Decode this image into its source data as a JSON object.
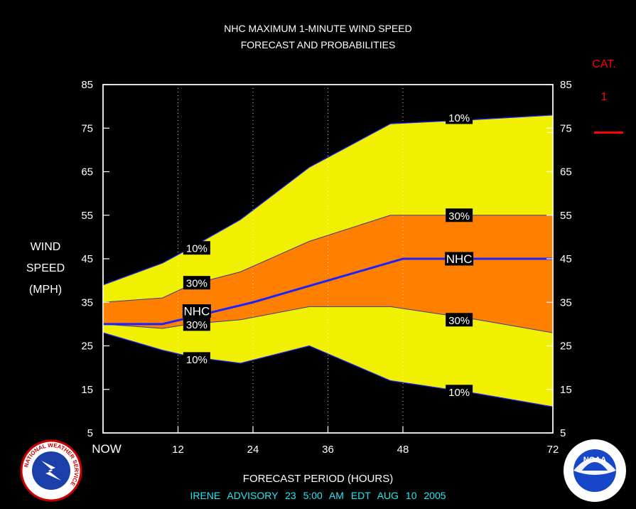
{
  "header": {
    "title_line1": "NHC MAXIMUM 1-MINUTE WIND SPEED",
    "title_line2": "FORECAST AND PROBABILITIES"
  },
  "y_axis_label": [
    "WIND",
    "SPEED",
    "(MPH)"
  ],
  "x_axis_label": "FORECAST PERIOD (HOURS)",
  "advisory_line": "IRENE ADVISORY 23 5:00 AM EDT AUG 10 2005",
  "category": {
    "label": "CAT.",
    "value": "1",
    "color": "#ff0000",
    "threshold_mph": 74
  },
  "colors": {
    "outer_band": "#f0f000",
    "inner_band": "#ff7f00",
    "nhc_line": "#1a22ff",
    "advisory_text": "#23e7f2",
    "background": "#000000"
  },
  "logos": [
    {
      "name": "national-weather-service-logo",
      "text": "NATIONAL WEATHER SERVICE"
    },
    {
      "name": "noaa-logo",
      "text": "NOAA"
    }
  ],
  "chart_data": {
    "type": "area",
    "xlim": [
      0,
      72
    ],
    "ylim": [
      5,
      85
    ],
    "x_ticks": [
      {
        "x": 0,
        "label": "NOW"
      },
      {
        "x": 12,
        "label": "12"
      },
      {
        "x": 24,
        "label": "24"
      },
      {
        "x": 36,
        "label": "36"
      },
      {
        "x": 48,
        "label": "48"
      },
      {
        "x": 72,
        "label": "72"
      }
    ],
    "y_ticks": [
      5,
      15,
      25,
      35,
      45,
      55,
      65,
      75,
      85
    ],
    "series": [
      {
        "name": "10%",
        "band": "upper",
        "x": [
          0,
          9.5,
          14,
          22,
          33,
          46,
          60,
          72
        ],
        "values": [
          39,
          44,
          47.5,
          54,
          66,
          76,
          77,
          78
        ]
      },
      {
        "name": "30%",
        "band": "upper",
        "x": [
          0,
          9.5,
          14,
          22,
          33,
          46,
          60,
          72
        ],
        "values": [
          35,
          36,
          39,
          42,
          49,
          55,
          55,
          55
        ]
      },
      {
        "name": "NHC",
        "x": [
          0,
          9.5,
          24,
          48,
          72
        ],
        "values": [
          30,
          30,
          35,
          45,
          45
        ]
      },
      {
        "name": "30%",
        "band": "lower",
        "x": [
          0,
          9.5,
          14,
          22,
          33,
          46,
          60,
          72
        ],
        "values": [
          30,
          29,
          30,
          31,
          34,
          34,
          31,
          28
        ]
      },
      {
        "name": "10%",
        "band": "lower",
        "x": [
          0,
          9.5,
          14,
          22,
          33,
          46,
          60,
          72
        ],
        "values": [
          28,
          24,
          22.5,
          21,
          25,
          17,
          14,
          11
        ]
      }
    ],
    "labels": [
      {
        "text": "10%",
        "x": 15,
        "y": 47.5
      },
      {
        "text": "30%",
        "x": 15,
        "y": 39.5
      },
      {
        "text": "NHC",
        "x": 15,
        "y": 33
      },
      {
        "text": "30%",
        "x": 15,
        "y": 30
      },
      {
        "text": "10%",
        "x": 15,
        "y": 22
      },
      {
        "text": "10%",
        "x": 57,
        "y": 77.5
      },
      {
        "text": "30%",
        "x": 57,
        "y": 55
      },
      {
        "text": "NHC",
        "x": 57,
        "y": 45
      },
      {
        "text": "30%",
        "x": 57,
        "y": 31
      },
      {
        "text": "10%",
        "x": 57,
        "y": 14.5
      }
    ]
  }
}
